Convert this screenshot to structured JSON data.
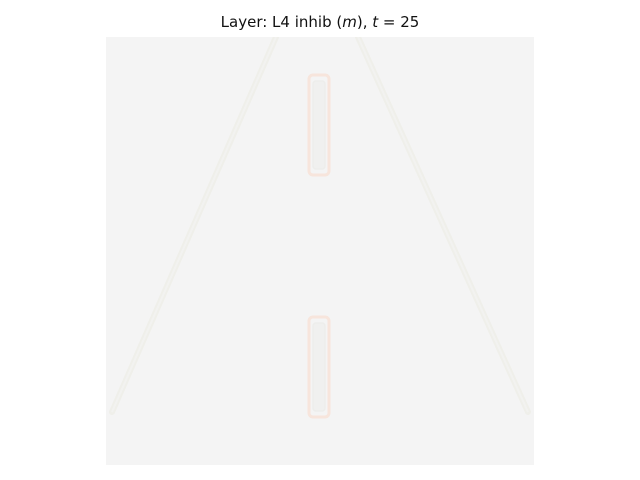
{
  "figure": {
    "title_prefix": "Layer: L4 inhib (",
    "title_var": "m",
    "title_mid": "), ",
    "title_t": "t",
    "title_eq": " = 25"
  },
  "image": {
    "description_colors": {
      "background": "#f4f4f4",
      "road_edge": "#efefe9",
      "lane_mark_outline": "#f6e6df",
      "lane_mark_inner": "#efefef"
    }
  }
}
